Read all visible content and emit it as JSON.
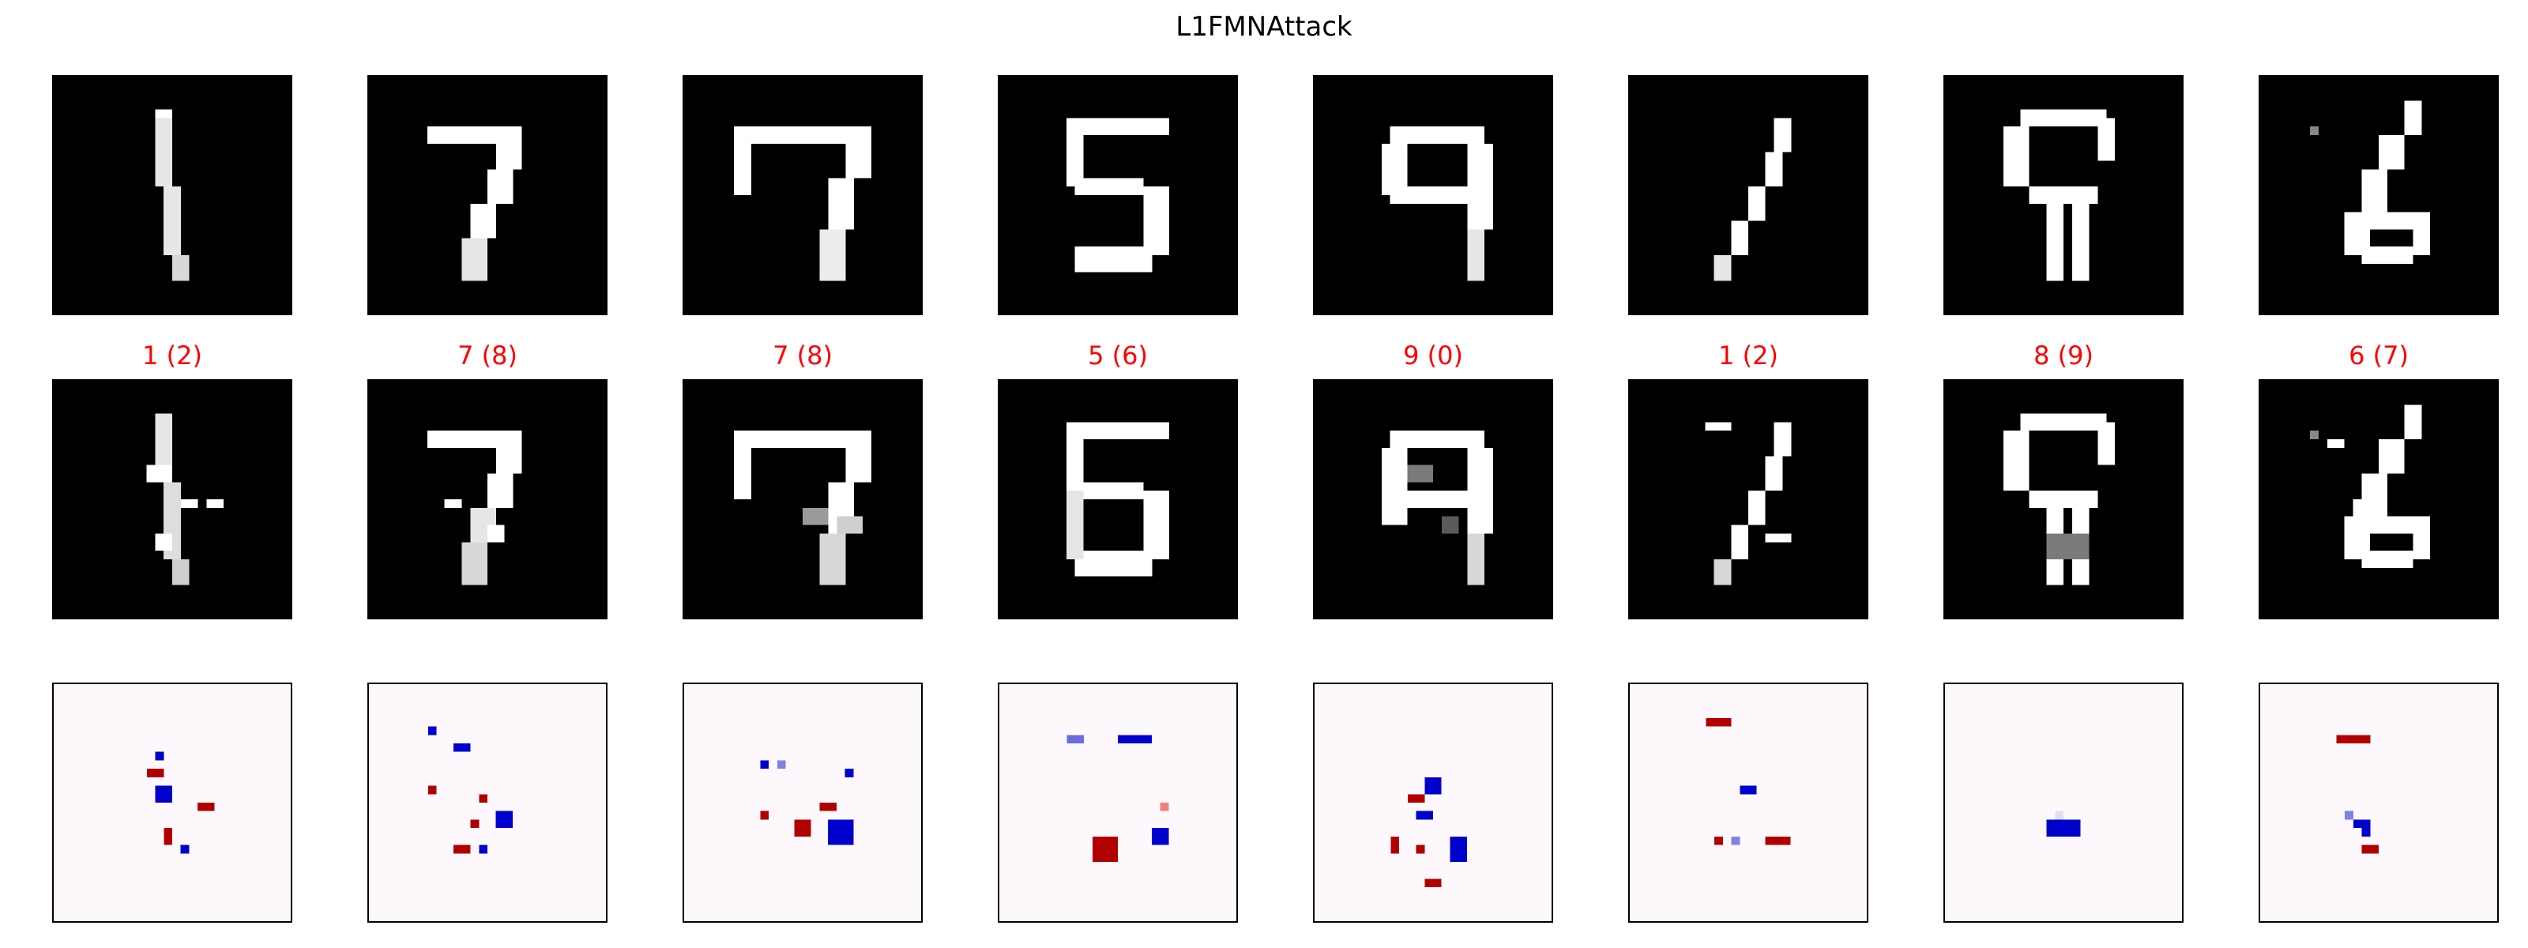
{
  "figure": {
    "title": "L1FMNAttack",
    "label_color": "#ff0000",
    "perturbation_colors": {
      "positive": "#b00000",
      "negative": "#0000cc",
      "neutral": "#fdf8fb"
    }
  },
  "samples": [
    {
      "prediction_label": "1 (2)",
      "digit": "1"
    },
    {
      "prediction_label": "7 (8)",
      "digit": "7"
    },
    {
      "prediction_label": "7 (8)",
      "digit": "7"
    },
    {
      "prediction_label": "5 (6)",
      "digit": "5"
    },
    {
      "prediction_label": "9 (0)",
      "digit": "9"
    },
    {
      "prediction_label": "1 (2)",
      "digit": "1"
    },
    {
      "prediction_label": "8 (9)",
      "digit": "8"
    },
    {
      "prediction_label": "6 (7)",
      "digit": "6"
    }
  ]
}
